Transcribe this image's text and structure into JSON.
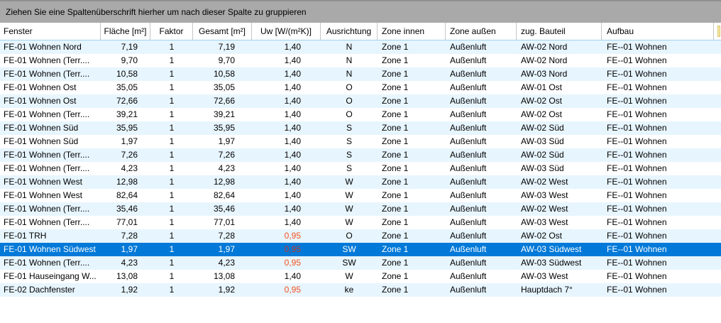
{
  "group_panel": {
    "label": "Ziehen Sie eine Spaltenüberschrift hierher um nach dieser Spalte zu gruppieren"
  },
  "grid": {
    "columns": [
      {
        "id": "fenster",
        "label": "Fenster"
      },
      {
        "id": "flaeche",
        "label": "Fläche [m²]"
      },
      {
        "id": "faktor",
        "label": "Faktor"
      },
      {
        "id": "gesamt",
        "label": "Gesamt [m²]"
      },
      {
        "id": "uw",
        "label": "Uw [W/(m²K)]"
      },
      {
        "id": "ausrichtung",
        "label": "Ausrichtung"
      },
      {
        "id": "zone_innen",
        "label": "Zone innen"
      },
      {
        "id": "zone_aussen",
        "label": "Zone außen"
      },
      {
        "id": "bauteil",
        "label": "zug. Bauteil"
      },
      {
        "id": "aufbau",
        "label": "Aufbau"
      }
    ],
    "uw_warning_value": "0,95",
    "selected_row_index": 15,
    "rows": [
      [
        "FE-01 Wohnen Nord",
        "7,19",
        "1",
        "7,19",
        "1,40",
        "N",
        "Zone 1",
        "Außenluft",
        "AW-02 Nord",
        "FE--01 Wohnen"
      ],
      [
        "FE-01 Wohnen (Terr....",
        "9,70",
        "1",
        "9,70",
        "1,40",
        "N",
        "Zone 1",
        "Außenluft",
        "AW-02 Nord",
        "FE--01 Wohnen"
      ],
      [
        "FE-01 Wohnen (Terr....",
        "10,58",
        "1",
        "10,58",
        "1,40",
        "N",
        "Zone 1",
        "Außenluft",
        "AW-03 Nord",
        "FE--01 Wohnen"
      ],
      [
        "FE-01 Wohnen Ost",
        "35,05",
        "1",
        "35,05",
        "1,40",
        "O",
        "Zone 1",
        "Außenluft",
        "AW-01 Ost",
        "FE--01 Wohnen"
      ],
      [
        "FE-01 Wohnen Ost",
        "72,66",
        "1",
        "72,66",
        "1,40",
        "O",
        "Zone 1",
        "Außenluft",
        "AW-02 Ost",
        "FE--01 Wohnen"
      ],
      [
        "FE-01 Wohnen (Terr....",
        "39,21",
        "1",
        "39,21",
        "1,40",
        "O",
        "Zone 1",
        "Außenluft",
        "AW-02 Ost",
        "FE--01 Wohnen"
      ],
      [
        "FE-01 Wohnen Süd",
        "35,95",
        "1",
        "35,95",
        "1,40",
        "S",
        "Zone 1",
        "Außenluft",
        "AW-02 Süd",
        "FE--01 Wohnen"
      ],
      [
        "FE-01 Wohnen Süd",
        "1,97",
        "1",
        "1,97",
        "1,40",
        "S",
        "Zone 1",
        "Außenluft",
        "AW-03 Süd",
        "FE--01 Wohnen"
      ],
      [
        "FE-01 Wohnen (Terr....",
        "7,26",
        "1",
        "7,26",
        "1,40",
        "S",
        "Zone 1",
        "Außenluft",
        "AW-02 Süd",
        "FE--01 Wohnen"
      ],
      [
        "FE-01 Wohnen (Terr....",
        "4,23",
        "1",
        "4,23",
        "1,40",
        "S",
        "Zone 1",
        "Außenluft",
        "AW-03 Süd",
        "FE--01 Wohnen"
      ],
      [
        "FE-01 Wohnen West",
        "12,98",
        "1",
        "12,98",
        "1,40",
        "W",
        "Zone 1",
        "Außenluft",
        "AW-02 West",
        "FE--01 Wohnen"
      ],
      [
        "FE-01 Wohnen West",
        "82,64",
        "1",
        "82,64",
        "1,40",
        "W",
        "Zone 1",
        "Außenluft",
        "AW-03 West",
        "FE--01 Wohnen"
      ],
      [
        "FE-01 Wohnen (Terr....",
        "35,46",
        "1",
        "35,46",
        "1,40",
        "W",
        "Zone 1",
        "Außenluft",
        "AW-02 West",
        "FE--01 Wohnen"
      ],
      [
        "FE-01 Wohnen (Terr....",
        "77,01",
        "1",
        "77,01",
        "1,40",
        "W",
        "Zone 1",
        "Außenluft",
        "AW-03 West",
        "FE--01 Wohnen"
      ],
      [
        "FE-01 TRH",
        "7,28",
        "1",
        "7,28",
        "0,95",
        "O",
        "Zone 1",
        "Außenluft",
        "AW-02 Ost",
        "FE--01 Wohnen"
      ],
      [
        "FE-01 Wohnen Südwest",
        "1,97",
        "1",
        "1,97",
        "0,95",
        "SW",
        "Zone 1",
        "Außenluft",
        "AW-03 Südwest",
        "FE--01 Wohnen"
      ],
      [
        "FE-01 Wohnen (Terr....",
        "4,23",
        "1",
        "4,23",
        "0,95",
        "SW",
        "Zone 1",
        "Außenluft",
        "AW-03 Südwest",
        "FE--01 Wohnen"
      ],
      [
        "FE-01 Hauseingang W...",
        "13,08",
        "1",
        "13,08",
        "1,40",
        "W",
        "Zone 1",
        "Außenluft",
        "AW-03 West",
        "FE--01 Wohnen"
      ],
      [
        "FE-02 Dachfenster",
        "1,92",
        "1",
        "1,92",
        "0,95",
        "ke",
        "Zone 1",
        "Außenluft",
        "Hauptdach 7°",
        "FE--01 Wohnen"
      ]
    ]
  },
  "colors": {
    "selection": "#0079d8",
    "warning_text": "#f4511e",
    "alt_row": "#e7f5fe",
    "group_panel_bg": "#a9a9a9",
    "header_bottom_border": "#a0d0ee",
    "edge_marker": "#f8e9a4"
  }
}
